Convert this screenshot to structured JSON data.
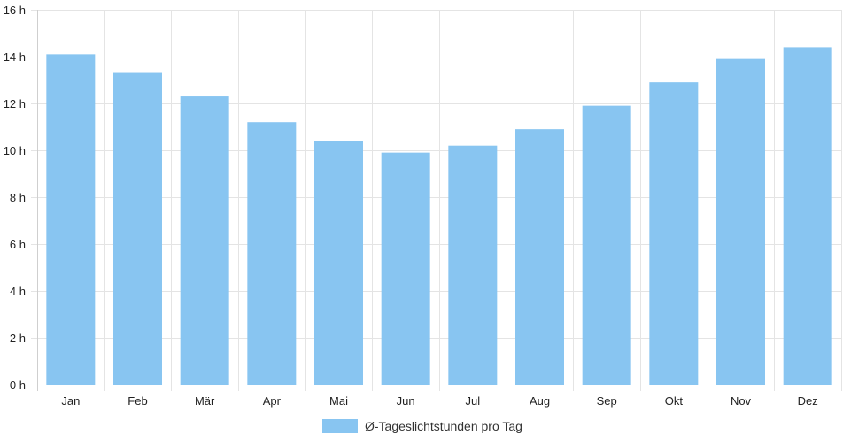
{
  "chart_data": {
    "type": "bar",
    "categories": [
      "Jan",
      "Feb",
      "Mär",
      "Apr",
      "Mai",
      "Jun",
      "Jul",
      "Aug",
      "Sep",
      "Okt",
      "Nov",
      "Dez"
    ],
    "series": [
      {
        "name": "Ø-Tageslichtstunden pro Tag",
        "values": [
          14.1,
          13.3,
          12.3,
          11.2,
          10.4,
          9.9,
          10.2,
          10.9,
          11.9,
          12.9,
          13.9,
          14.4
        ],
        "color": "#88c5f1"
      }
    ],
    "y_ticks": [
      "0 h",
      "2 h",
      "4 h",
      "6 h",
      "8 h",
      "10 h",
      "12 h",
      "14 h",
      "16 h"
    ],
    "ylim": [
      0,
      16
    ],
    "y_step": 2,
    "grid": true,
    "legend_position": "bottom"
  }
}
